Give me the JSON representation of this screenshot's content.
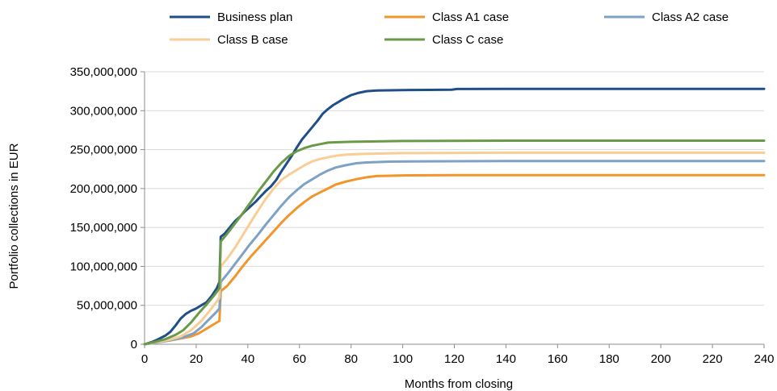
{
  "chart_data": {
    "type": "line",
    "title": "",
    "xlabel": "Months from closing",
    "ylabel": "Portfolio collections in EUR",
    "xlim": [
      0,
      240
    ],
    "ylim": [
      0,
      350000000
    ],
    "x_ticks": [
      0,
      20,
      40,
      60,
      80,
      100,
      120,
      140,
      160,
      180,
      200,
      220,
      240
    ],
    "x_tick_labels": [
      "0",
      "20",
      "40",
      "60",
      "80",
      "100",
      "120",
      "140",
      "160",
      "180",
      "200",
      "220",
      "240"
    ],
    "y_ticks": [
      0,
      50000000,
      100000000,
      150000000,
      200000000,
      250000000,
      300000000,
      350000000
    ],
    "y_tick_labels": [
      "0",
      "50,000,000",
      "100,000,000",
      "150,000,000",
      "200,000,000",
      "250,000,000",
      "300,000,000",
      "350,000,000"
    ],
    "grid": "horizontal",
    "legend_position": "top",
    "series": [
      {
        "name": "Business plan",
        "color": "#1F4E89",
        "points": [
          [
            0,
            0
          ],
          [
            3,
            3000000
          ],
          [
            5,
            6000000
          ],
          [
            8,
            11000000
          ],
          [
            10,
            16000000
          ],
          [
            12,
            24000000
          ],
          [
            14,
            33000000
          ],
          [
            16,
            39000000
          ],
          [
            18,
            43000000
          ],
          [
            20,
            46000000
          ],
          [
            22,
            50000000
          ],
          [
            24,
            54000000
          ],
          [
            26,
            62000000
          ],
          [
            28,
            72000000
          ],
          [
            29,
            80000000
          ],
          [
            29.5,
            138000000
          ],
          [
            31,
            142000000
          ],
          [
            33,
            150000000
          ],
          [
            35,
            158000000
          ],
          [
            37,
            164000000
          ],
          [
            39,
            171000000
          ],
          [
            41,
            177000000
          ],
          [
            43,
            183000000
          ],
          [
            45,
            190000000
          ],
          [
            47,
            197000000
          ],
          [
            49,
            203000000
          ],
          [
            51,
            211000000
          ],
          [
            53,
            222000000
          ],
          [
            55,
            232000000
          ],
          [
            57,
            242000000
          ],
          [
            59,
            253000000
          ],
          [
            61,
            263000000
          ],
          [
            63,
            271000000
          ],
          [
            65,
            279000000
          ],
          [
            67,
            287000000
          ],
          [
            69,
            296000000
          ],
          [
            71,
            302000000
          ],
          [
            73,
            307000000
          ],
          [
            75,
            311000000
          ],
          [
            77,
            315000000
          ],
          [
            80,
            320000000
          ],
          [
            83,
            323000000
          ],
          [
            86,
            325000000
          ],
          [
            90,
            326000000
          ],
          [
            100,
            326500000
          ],
          [
            110,
            326700000
          ],
          [
            119,
            327000000
          ],
          [
            121,
            327800000
          ],
          [
            140,
            328000000
          ],
          [
            160,
            328000000
          ],
          [
            200,
            328000000
          ],
          [
            240,
            328000000
          ]
        ]
      },
      {
        "name": "Class A1 case",
        "color": "#F0962A",
        "points": [
          [
            0,
            0
          ],
          [
            5,
            2500000
          ],
          [
            10,
            5000000
          ],
          [
            15,
            8000000
          ],
          [
            18,
            10000000
          ],
          [
            21,
            14000000
          ],
          [
            24,
            20000000
          ],
          [
            27,
            26000000
          ],
          [
            29,
            30000000
          ],
          [
            29.5,
            68000000
          ],
          [
            32,
            75000000
          ],
          [
            35,
            87000000
          ],
          [
            38,
            100000000
          ],
          [
            41,
            112000000
          ],
          [
            44,
            123000000
          ],
          [
            47,
            134000000
          ],
          [
            50,
            145000000
          ],
          [
            53,
            156000000
          ],
          [
            56,
            166000000
          ],
          [
            59,
            175000000
          ],
          [
            62,
            183000000
          ],
          [
            65,
            190000000
          ],
          [
            68,
            195000000
          ],
          [
            71,
            200000000
          ],
          [
            74,
            205000000
          ],
          [
            78,
            209000000
          ],
          [
            82,
            212000000
          ],
          [
            86,
            214500000
          ],
          [
            90,
            216000000
          ],
          [
            100,
            216800000
          ],
          [
            120,
            217200000
          ],
          [
            160,
            217300000
          ],
          [
            240,
            217300000
          ]
        ]
      },
      {
        "name": "Class A2 case",
        "color": "#7EA1C6",
        "points": [
          [
            0,
            0
          ],
          [
            5,
            2500000
          ],
          [
            10,
            5000000
          ],
          [
            15,
            9000000
          ],
          [
            19,
            14000000
          ],
          [
            22,
            22000000
          ],
          [
            25,
            32000000
          ],
          [
            28,
            42000000
          ],
          [
            29,
            46000000
          ],
          [
            29.5,
            80000000
          ],
          [
            32,
            90000000
          ],
          [
            35,
            103000000
          ],
          [
            38,
            116000000
          ],
          [
            41,
            129000000
          ],
          [
            44,
            141000000
          ],
          [
            47,
            154000000
          ],
          [
            50,
            166000000
          ],
          [
            53,
            178000000
          ],
          [
            56,
            189000000
          ],
          [
            59,
            198000000
          ],
          [
            62,
            206000000
          ],
          [
            65,
            212000000
          ],
          [
            68,
            218000000
          ],
          [
            71,
            223000000
          ],
          [
            74,
            227000000
          ],
          [
            78,
            230000000
          ],
          [
            82,
            232500000
          ],
          [
            86,
            233500000
          ],
          [
            95,
            234500000
          ],
          [
            110,
            235000000
          ],
          [
            140,
            235300000
          ],
          [
            240,
            235300000
          ]
        ]
      },
      {
        "name": "Class B case",
        "color": "#F8CE96",
        "points": [
          [
            0,
            0
          ],
          [
            5,
            3000000
          ],
          [
            10,
            6000000
          ],
          [
            14,
            10000000
          ],
          [
            18,
            18000000
          ],
          [
            22,
            30000000
          ],
          [
            25,
            42000000
          ],
          [
            28,
            55000000
          ],
          [
            29,
            60000000
          ],
          [
            29.5,
            100000000
          ],
          [
            32,
            110000000
          ],
          [
            35,
            124000000
          ],
          [
            38,
            140000000
          ],
          [
            41,
            156000000
          ],
          [
            44,
            172000000
          ],
          [
            47,
            187000000
          ],
          [
            50,
            200000000
          ],
          [
            53,
            211000000
          ],
          [
            56,
            218000000
          ],
          [
            59,
            224000000
          ],
          [
            62,
            230000000
          ],
          [
            65,
            235000000
          ],
          [
            68,
            238000000
          ],
          [
            71,
            240000000
          ],
          [
            74,
            242000000
          ],
          [
            78,
            243500000
          ],
          [
            85,
            244500000
          ],
          [
            100,
            245500000
          ],
          [
            140,
            246000000
          ],
          [
            240,
            246000000
          ]
        ]
      },
      {
        "name": "Class C case",
        "color": "#6A9A48",
        "points": [
          [
            0,
            0
          ],
          [
            4,
            3000000
          ],
          [
            8,
            6500000
          ],
          [
            12,
            12000000
          ],
          [
            15,
            18000000
          ],
          [
            18,
            28000000
          ],
          [
            21,
            40000000
          ],
          [
            24,
            51000000
          ],
          [
            27,
            63000000
          ],
          [
            29,
            72000000
          ],
          [
            29.5,
            132000000
          ],
          [
            32,
            142000000
          ],
          [
            35,
            155000000
          ],
          [
            38,
            168000000
          ],
          [
            41,
            182000000
          ],
          [
            44,
            196000000
          ],
          [
            47,
            209000000
          ],
          [
            50,
            222000000
          ],
          [
            53,
            233000000
          ],
          [
            56,
            242000000
          ],
          [
            59,
            248000000
          ],
          [
            62,
            252000000
          ],
          [
            65,
            255000000
          ],
          [
            68,
            257000000
          ],
          [
            71,
            259000000
          ],
          [
            75,
            259500000
          ],
          [
            80,
            260000000
          ],
          [
            100,
            261000000
          ],
          [
            140,
            261500000
          ],
          [
            240,
            261500000
          ]
        ]
      }
    ]
  }
}
